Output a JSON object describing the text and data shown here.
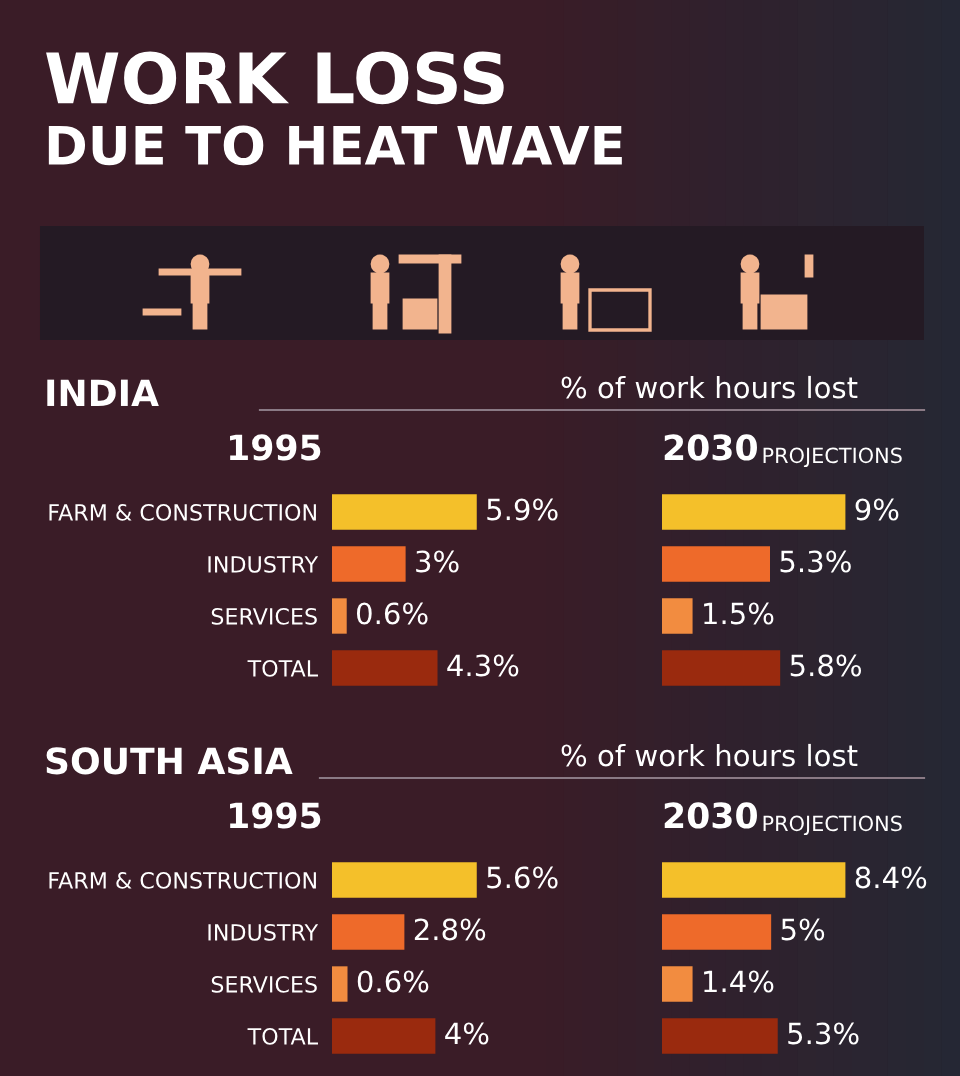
{
  "chart_data": [
    {
      "type": "bar",
      "orientation": "horizontal",
      "title": "1995",
      "annotations": [
        "WORK LOSS",
        "DUE TO HEAT WAVE",
        "INDIA",
        "% of work hours lost"
      ],
      "categories": [
        "FARM & CONSTRUCTION",
        "INDUSTRY",
        "SERVICES",
        "TOTAL"
      ],
      "values": [
        5.9,
        3,
        0.6,
        4.3
      ],
      "colors": [
        "#f4c02a",
        "#ee6a2a",
        "#f28c40",
        "#9a2a0e"
      ],
      "value_labels": [
        "5.9%",
        "3%",
        "0.6%",
        "4.3%"
      ],
      "tick_labels": "y"
    },
    {
      "type": "bar",
      "orientation": "horizontal",
      "title": "2030",
      "subtitle": "PROJECTIONS",
      "categories": [
        null,
        null,
        null,
        null
      ],
      "values": [
        9,
        5.3,
        1.5,
        5.8
      ],
      "colors": [
        "#f4c02a",
        "#ee6a2a",
        "#f28c40",
        "#9a2a0e"
      ],
      "value_labels": [
        "9%",
        "5.3%",
        "1.5%",
        "5.8%"
      ],
      "tick_labels": false
    },
    {
      "type": "bar",
      "orientation": "horizontal",
      "title": "1995",
      "annotations": [
        "SOUTH ASIA",
        "% of work hours lost"
      ],
      "categories": [
        "FARM & CONSTRUCTION",
        "INDUSTRY",
        "SERVICES",
        "TOTAL"
      ],
      "values": [
        5.6,
        2.8,
        0.6,
        4
      ],
      "colors": [
        "#f4c02a",
        "#ee6a2a",
        "#f28c40",
        "#9a2a0e"
      ],
      "value_labels": [
        "5.6%",
        "2.8%",
        "0.6%",
        "4%"
      ],
      "tick_labels": "y"
    },
    {
      "type": "bar",
      "orientation": "horizontal",
      "title": "2030",
      "subtitle": "PROJECTIONS",
      "categories": [
        null,
        null,
        null,
        null
      ],
      "values": [
        8.4,
        5,
        1.4,
        5.3
      ],
      "colors": [
        "#f4c02a",
        "#ee6a2a",
        "#f28c40",
        "#9a2a0e"
      ],
      "value_labels": [
        "8.4%",
        "5%",
        "1.4%",
        "5.3%"
      ],
      "tick_labels": false
    }
  ]
}
